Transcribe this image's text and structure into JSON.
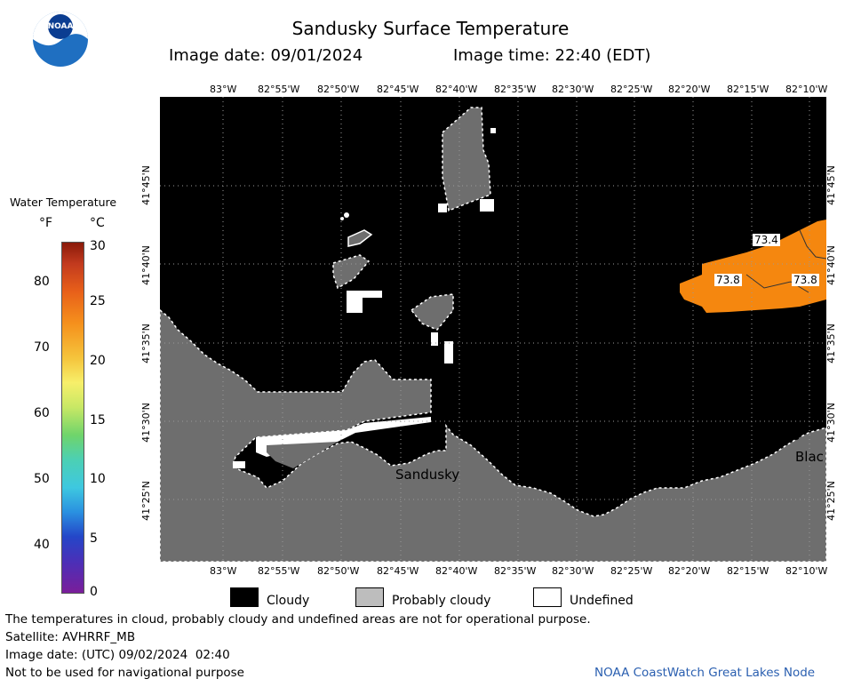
{
  "header": {
    "title": "Sandusky Surface Temperature",
    "image_date": "Image date: 09/01/2024",
    "image_time": "Image time: 22:40 (EDT)"
  },
  "logo": {
    "text": "NOAA"
  },
  "map": {
    "lon_ticks": [
      "83°W",
      "82°55'W",
      "82°50'W",
      "82°45'W",
      "82°40'W",
      "82°35'W",
      "82°30'W",
      "82°25'W",
      "82°20'W",
      "82°15'W",
      "82°10'W"
    ],
    "lat_ticks": [
      "41°45'N",
      "41°40'N",
      "41°35'N",
      "41°30'N",
      "41°25'N"
    ],
    "temp_labels": [
      "73.4",
      "73.8",
      "73.8"
    ],
    "place_labels": [
      "Sandusky",
      "Blac"
    ],
    "colors": {
      "cloudy": "#000000",
      "probably_cloudy": "#6e6e6e",
      "undefined": "#ffffff",
      "warm": "#f5870f"
    }
  },
  "colorbar": {
    "title": "Water Temperature",
    "unit_f": "°F",
    "unit_c": "°C",
    "f_labels": [
      "80",
      "70",
      "60",
      "50",
      "40"
    ],
    "c_labels": [
      "30",
      "25",
      "20",
      "15",
      "10",
      "5",
      "0"
    ]
  },
  "key": {
    "cloudy": "Cloudy",
    "probably_cloudy": "Probably cloudy",
    "undefined": "Undefined"
  },
  "footer": {
    "disclaimer": "The temperatures in cloud, probably cloudy and undefined areas are not for operational purpose.",
    "satellite": "Satellite: AVHRRF_MB",
    "utc_date": "Image date: (UTC) 09/02/2024  02:40",
    "nav_warning": "Not to be used for navigational purpose",
    "credit": "NOAA CoastWatch Great Lakes Node"
  }
}
